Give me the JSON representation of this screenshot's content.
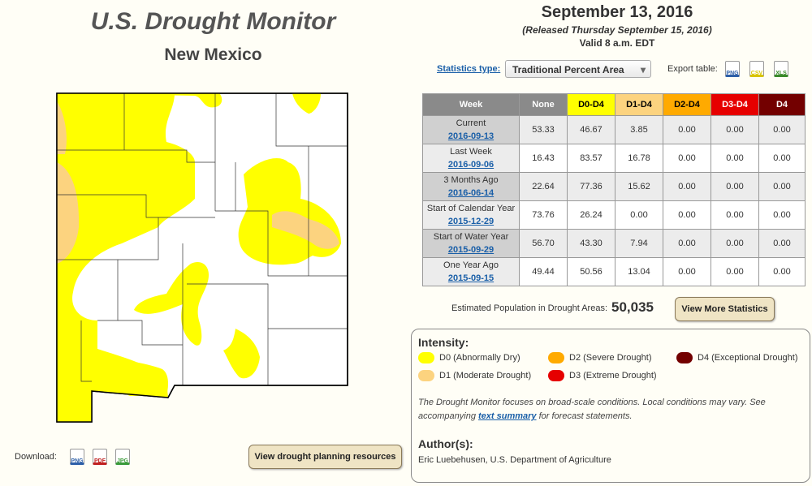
{
  "header": {
    "title": "U.S. Drought Monitor",
    "state": "New Mexico"
  },
  "date": {
    "title": "September 13, 2016",
    "released": "(Released Thursday September 15, 2016)",
    "valid": "Valid 8 a.m. EDT"
  },
  "statistics": {
    "label": "Statistics type:",
    "selected": "Traditional Percent Area",
    "export_label": "Export table:",
    "export": [
      "PNG",
      "CSV",
      "XLS"
    ]
  },
  "table": {
    "columns": [
      "Week",
      "None",
      "D0-D4",
      "D1-D4",
      "D2-D4",
      "D3-D4",
      "D4"
    ],
    "rows": [
      {
        "label": "Current",
        "date": "2016-09-13",
        "values": [
          "53.33",
          "46.67",
          "3.85",
          "0.00",
          "0.00",
          "0.00"
        ]
      },
      {
        "label": "Last Week",
        "date": "2016-09-06",
        "values": [
          "16.43",
          "83.57",
          "16.78",
          "0.00",
          "0.00",
          "0.00"
        ]
      },
      {
        "label": "3 Months Ago",
        "date": "2016-06-14",
        "values": [
          "22.64",
          "77.36",
          "15.62",
          "0.00",
          "0.00",
          "0.00"
        ]
      },
      {
        "label": "Start of Calendar Year",
        "date": "2015-12-29",
        "values": [
          "73.76",
          "26.24",
          "0.00",
          "0.00",
          "0.00",
          "0.00"
        ]
      },
      {
        "label": "Start of Water Year",
        "date": "2015-09-29",
        "values": [
          "56.70",
          "43.30",
          "7.94",
          "0.00",
          "0.00",
          "0.00"
        ]
      },
      {
        "label": "One Year Ago",
        "date": "2015-09-15",
        "values": [
          "49.44",
          "50.56",
          "13.04",
          "0.00",
          "0.00",
          "0.00"
        ]
      }
    ]
  },
  "population": {
    "label": "Estimated Population in Drought Areas:",
    "value": "50,035",
    "button": "View More Statistics"
  },
  "legend": {
    "title": "Intensity:",
    "items": [
      {
        "code": "D0",
        "description": "(Abnormally Dry)"
      },
      {
        "code": "D1",
        "description": "(Moderate Drought)"
      },
      {
        "code": "D2",
        "description": "(Severe Drought)"
      },
      {
        "code": "D3",
        "description": "(Extreme Drought)"
      },
      {
        "code": "D4",
        "description": "(Exceptional Drought)"
      }
    ]
  },
  "note": {
    "before": "The Drought Monitor focuses on broad-scale conditions. Local conditions may vary. See accompanying ",
    "link": "text summary",
    "after": " for forecast statements."
  },
  "authors": {
    "title": "Author(s):",
    "name": "Eric Luebehusen, U.S. Department of Agriculture"
  },
  "download": {
    "label": "Download:",
    "formats": [
      "PNG",
      "PDF",
      "JPG"
    ],
    "button": "View drought planning resources"
  }
}
